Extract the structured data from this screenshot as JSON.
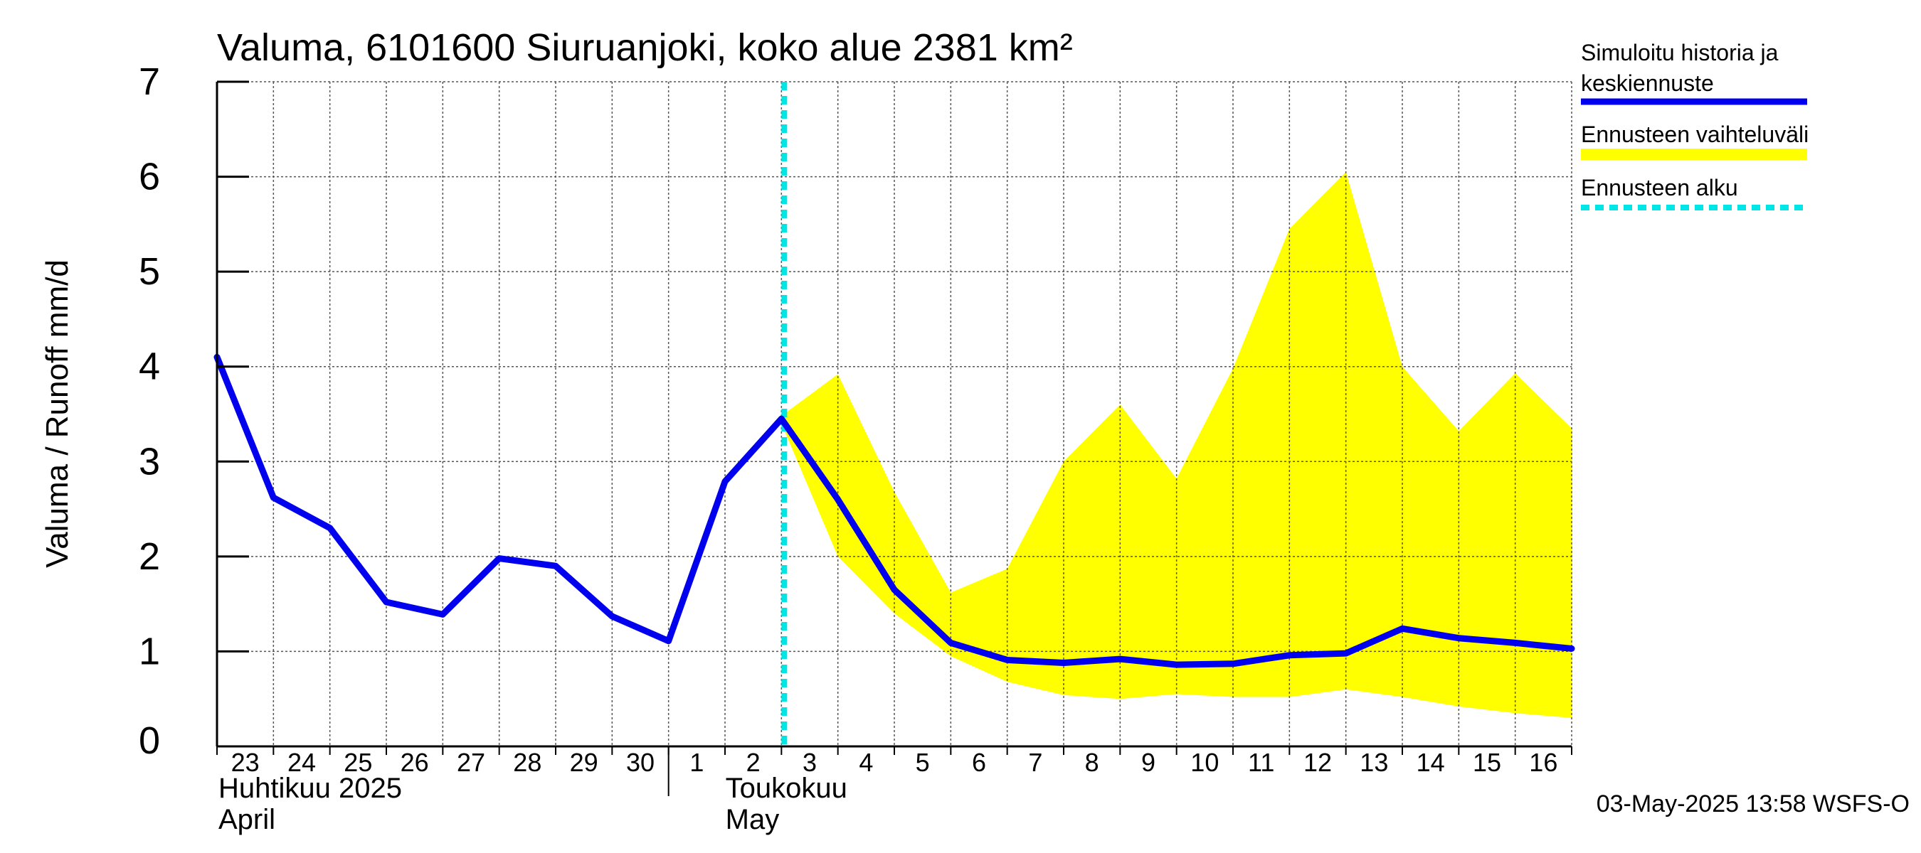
{
  "chart_data": {
    "type": "line",
    "title": "Valuma, 6101600 Siuruanjoki, koko alue 2381 km²",
    "ylabel": "Valuma / Runoff    mm/d",
    "ylim": [
      0,
      7
    ],
    "yticks": [
      0,
      1,
      2,
      3,
      4,
      5,
      6,
      7
    ],
    "grid": true,
    "x_labels": [
      "23",
      "24",
      "25",
      "26",
      "27",
      "28",
      "29",
      "30",
      "1",
      "2",
      "3",
      "4",
      "5",
      "6",
      "7",
      "8",
      "9",
      "10",
      "11",
      "12",
      "13",
      "14",
      "15",
      "16"
    ],
    "month_labels": [
      {
        "line1": "Huhtikuu  2025",
        "line2": "April",
        "start_index": 0
      },
      {
        "line1": "Toukokuu",
        "line2": "May",
        "start_index": 8
      }
    ],
    "forecast_start_index": 10,
    "series": [
      {
        "name": "Simuloitu historia ja keskiennuste",
        "color": "#0000ee",
        "values": [
          4.1,
          2.62,
          2.3,
          1.52,
          1.39,
          1.98,
          1.9,
          1.37,
          1.11,
          2.79,
          3.45,
          2.6,
          1.65,
          1.09,
          0.91,
          0.88,
          0.92,
          0.86,
          0.87,
          0.96,
          0.98,
          1.24,
          1.14,
          1.09,
          1.03
        ]
      }
    ],
    "band": {
      "name": "Ennusteen vaihteluväli",
      "color": "#ffff00",
      "start_index": 10,
      "upper": [
        3.48,
        3.92,
        2.68,
        1.62,
        1.87,
        3.0,
        3.6,
        2.82,
        3.98,
        5.45,
        6.05,
        4.0,
        3.32,
        3.93,
        3.35
      ],
      "lower": [
        3.4,
        2.0,
        1.4,
        0.95,
        0.68,
        0.54,
        0.5,
        0.55,
        0.52,
        0.52,
        0.6,
        0.52,
        0.42,
        0.35,
        0.3
      ]
    },
    "legend": [
      {
        "line1": "Simuloitu historia ja",
        "line2": "keskiennuste",
        "style": "line",
        "color": "#0000ee"
      },
      {
        "line1": "Ennusteen vaihteluväli",
        "line2": "",
        "style": "band",
        "color": "#ffff00"
      },
      {
        "line1": "Ennusteen alku",
        "line2": "",
        "style": "dashed",
        "color": "#00e5e5"
      }
    ],
    "footer": "03-May-2025 13:58 WSFS-O"
  }
}
